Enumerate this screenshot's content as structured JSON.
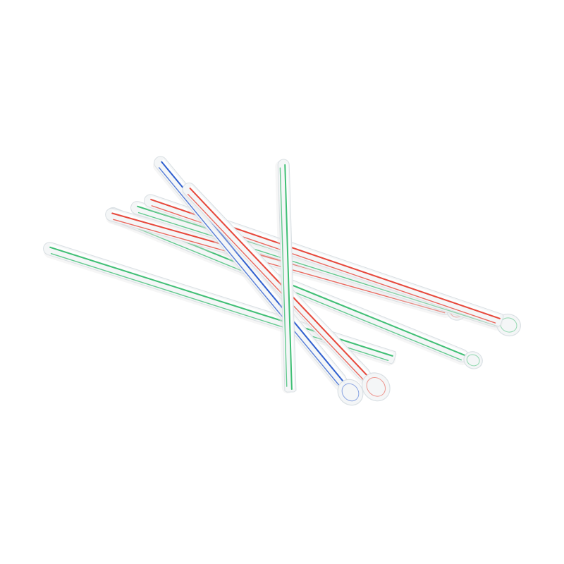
{
  "image": {
    "background_color": "#ffffff",
    "subject": "spoon-straws",
    "colors": {
      "straw_body": "#f4f6f7",
      "straw_edge": "#d9dfe3",
      "straw_highlight": "#ffffff",
      "stripe_green": "#3fbf74",
      "stripe_red": "#e8473a",
      "stripe_blue": "#2f5fd0",
      "shadow": "#e6e6e6"
    },
    "straws": [
      {
        "stripe": "green"
      },
      {
        "stripe": "green"
      },
      {
        "stripe": "red"
      },
      {
        "stripe": "green"
      },
      {
        "stripe": "red"
      },
      {
        "stripe": "blue"
      },
      {
        "stripe": "red"
      },
      {
        "stripe": "green"
      }
    ]
  }
}
